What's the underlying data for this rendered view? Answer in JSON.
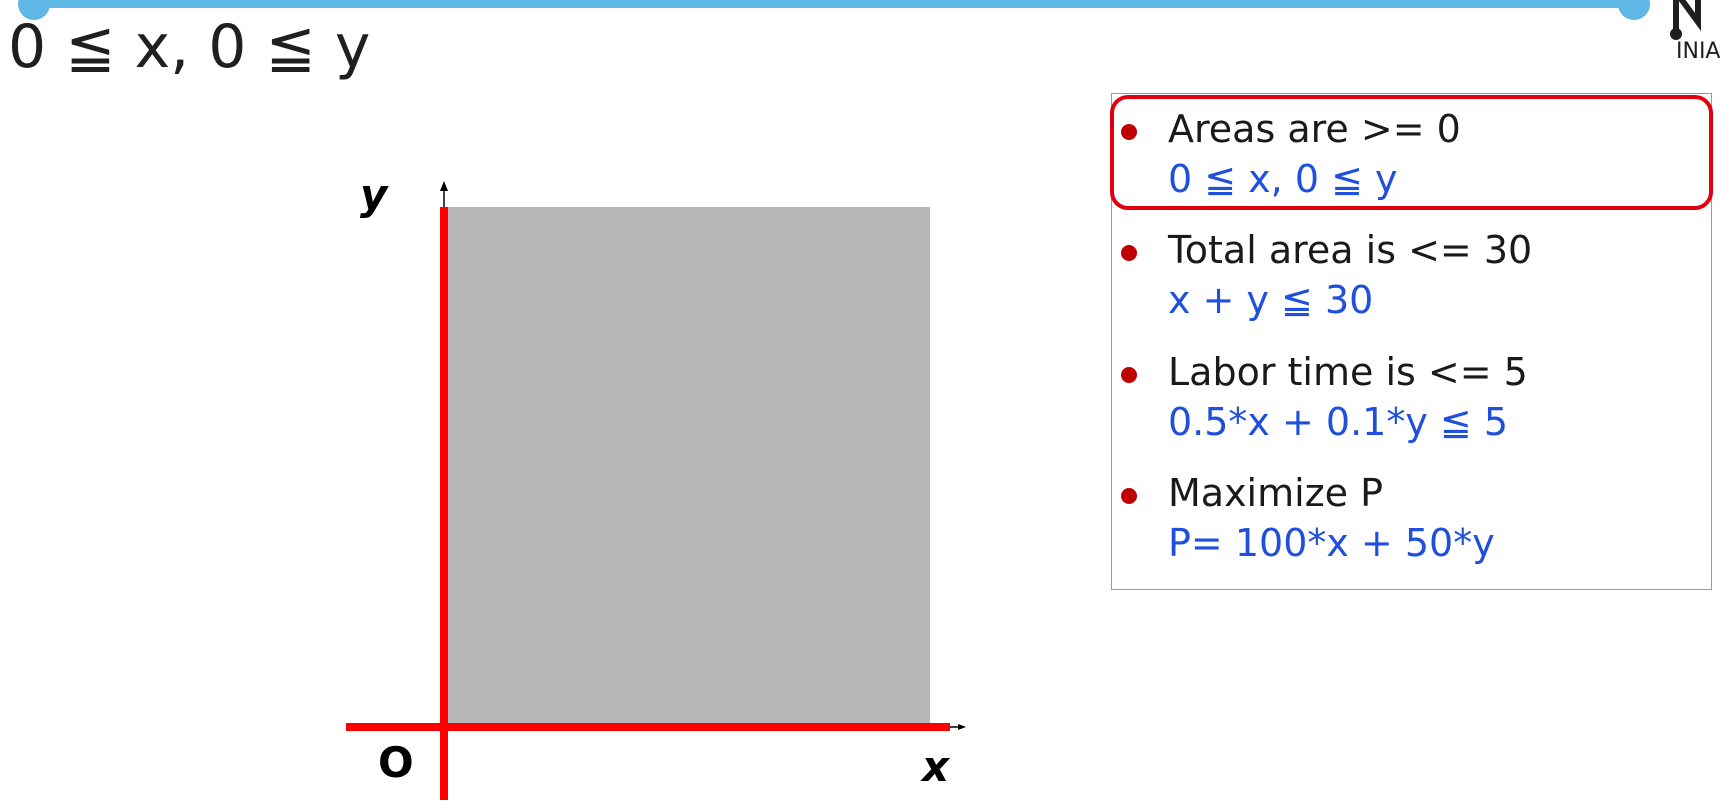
{
  "slide": {
    "title": "0 ≦ x, 0 ≦ y"
  },
  "logo": {
    "text": "INIA"
  },
  "diagram": {
    "y_label": "y",
    "origin_label": "O",
    "x_label": "x",
    "colors": {
      "axes": "#ff0000",
      "feasible_region": "#b7b7b7",
      "arrow": "#000000"
    }
  },
  "constraints": {
    "items": [
      {
        "title": "Areas are >= 0",
        "formula": "0 ≦ x, 0 ≦ y"
      },
      {
        "title": "Total area is <= 30",
        "formula": "x + y ≦ 30"
      },
      {
        "title": "Labor time is <= 5",
        "formula": "0.5*x + 0.1*y ≦ 5"
      },
      {
        "title": "Maximize P",
        "formula": "P= 100*x + 50*y"
      }
    ],
    "colors": {
      "bullet": "#c00000",
      "formula": "#1f4fdc",
      "highlight": "#e00010"
    }
  }
}
